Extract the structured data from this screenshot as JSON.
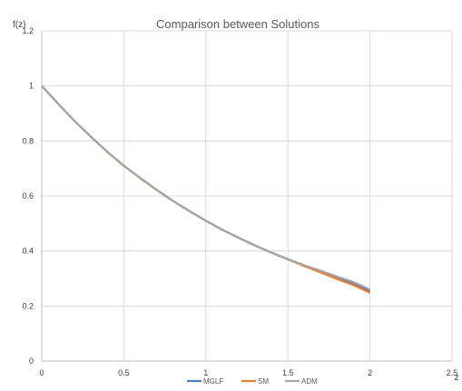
{
  "chart_data": {
    "type": "line",
    "title": "Comparison between Solutions",
    "ylabel": "f(z)",
    "xlabel": "z",
    "xlim": [
      0,
      2.5
    ],
    "ylim": [
      0,
      1.2
    ],
    "x_ticks": [
      "0",
      "0.5",
      "1",
      "1.5",
      "2",
      "2.5"
    ],
    "y_ticks": [
      "0",
      "0.2",
      "0.4",
      "0.6",
      "0.8",
      "1",
      "1.2"
    ],
    "grid": true,
    "legend_position": "bottom",
    "x": [
      0,
      0.1,
      0.2,
      0.3,
      0.4,
      0.5,
      0.6,
      0.7,
      0.8,
      0.9,
      1.0,
      1.1,
      1.2,
      1.3,
      1.4,
      1.5,
      1.6,
      1.7,
      1.8,
      1.9,
      2.0
    ],
    "series": [
      {
        "name": "MGLF",
        "color": "#4a7ebb",
        "values": [
          1.0,
          0.935,
          0.872,
          0.815,
          0.76,
          0.71,
          0.665,
          0.622,
          0.582,
          0.545,
          0.51,
          0.477,
          0.448,
          0.42,
          0.394,
          0.37,
          0.347,
          0.326,
          0.304,
          0.283,
          0.255
        ]
      },
      {
        "name": "SM",
        "color": "#ed7d31",
        "values": [
          1.0,
          0.935,
          0.872,
          0.815,
          0.76,
          0.71,
          0.665,
          0.622,
          0.582,
          0.545,
          0.51,
          0.477,
          0.448,
          0.42,
          0.394,
          0.37,
          0.345,
          0.322,
          0.298,
          0.276,
          0.248
        ]
      },
      {
        "name": "ADM",
        "color": "#a5a5a5",
        "values": [
          1.0,
          0.935,
          0.872,
          0.815,
          0.76,
          0.71,
          0.665,
          0.622,
          0.582,
          0.545,
          0.51,
          0.477,
          0.448,
          0.42,
          0.394,
          0.37,
          0.348,
          0.328,
          0.307,
          0.287,
          0.26
        ]
      }
    ]
  }
}
